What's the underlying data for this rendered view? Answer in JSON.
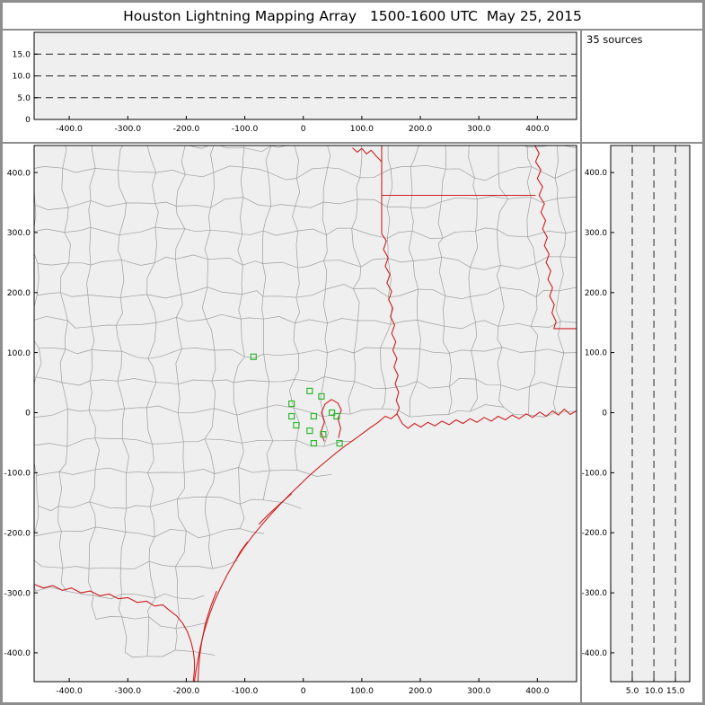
{
  "title": "Houston Lightning Mapping Array   1500-1600 UTC  May 25, 2015",
  "sources_label": "35 sources",
  "colors": {
    "frame": "#8e8e8e",
    "panel_bg": "#ffffff",
    "plot_bg": "#efefef",
    "axis": "#000000",
    "dashed": "#222222",
    "county": "#9e9e9e",
    "state": "#cc2020",
    "station": "#2db82d"
  },
  "chart_data": [
    {
      "id": "altitude_vs_ew",
      "name": "Altitude vs east-west distance panel (km), empty of sources",
      "type": "scatter",
      "xlim": [
        -460,
        467
      ],
      "ylim": [
        0,
        20
      ],
      "x_ticks": [
        {
          "v": -400,
          "label": "-400.0"
        },
        {
          "v": -300,
          "label": "-300.0"
        },
        {
          "v": -200,
          "label": "-200.0"
        },
        {
          "v": -100,
          "label": "-100.0"
        },
        {
          "v": 0,
          "label": "0"
        },
        {
          "v": 100,
          "label": "100.0"
        },
        {
          "v": 200,
          "label": "200.0"
        },
        {
          "v": 300,
          "label": "300.0"
        },
        {
          "v": 400,
          "label": "400.0"
        }
      ],
      "y_ticks": [
        {
          "v": 15,
          "label": "15.0"
        },
        {
          "v": 10,
          "label": "10.0"
        },
        {
          "v": 5,
          "label": "5.0"
        },
        {
          "v": 0,
          "label": "0"
        }
      ],
      "dashed_y": [
        5,
        10,
        15
      ],
      "points": []
    },
    {
      "id": "plan_view_map",
      "name": "Plan-view map, km east/north of network center; green squares are LMA stations; red = state borders, rivers and Gulf coastline; gray = county lines",
      "type": "scatter",
      "xlim": [
        -460,
        467
      ],
      "ylim": [
        -448,
        445
      ],
      "x_ticks": [
        {
          "v": -400,
          "label": "-400.0"
        },
        {
          "v": -300,
          "label": "-300.0"
        },
        {
          "v": -200,
          "label": "-200.0"
        },
        {
          "v": -100,
          "label": "-100.0"
        },
        {
          "v": 0,
          "label": "0"
        },
        {
          "v": 100,
          "label": "100.0"
        },
        {
          "v": 200,
          "label": "200.0"
        },
        {
          "v": 300,
          "label": "300.0"
        },
        {
          "v": 400,
          "label": "400.0"
        }
      ],
      "y_ticks": [
        {
          "v": 400,
          "label": "400.0"
        },
        {
          "v": 300,
          "label": "300.0"
        },
        {
          "v": 200,
          "label": "200.0"
        },
        {
          "v": 100,
          "label": "100.0"
        },
        {
          "v": 0,
          "label": "0"
        },
        {
          "v": -100,
          "label": "-100.0"
        },
        {
          "v": -200,
          "label": "-200.0"
        },
        {
          "v": -300,
          "label": "-300.0"
        },
        {
          "v": -400,
          "label": "-400.0"
        }
      ],
      "stations": [
        [
          -85,
          93
        ],
        [
          11,
          36
        ],
        [
          31,
          27
        ],
        [
          -20,
          15
        ],
        [
          -20,
          -6
        ],
        [
          -12,
          -21
        ],
        [
          18,
          -6
        ],
        [
          49,
          0
        ],
        [
          57,
          -6
        ],
        [
          11,
          -30
        ],
        [
          34,
          -36
        ],
        [
          18,
          -51
        ],
        [
          62,
          -51
        ]
      ],
      "land_boundary": [
        [
          -460,
          -285
        ],
        [
          -350,
          -352
        ],
        [
          -250,
          -420
        ],
        [
          -196,
          -448
        ],
        [
          -160,
          -330
        ],
        [
          -130,
          -260
        ],
        [
          -90,
          -200
        ],
        [
          -40,
          -150
        ],
        [
          10,
          -103
        ],
        [
          60,
          -57
        ],
        [
          110,
          -25
        ],
        [
          155,
          -4
        ],
        [
          250,
          -14
        ],
        [
          350,
          -10
        ],
        [
          467,
          -5
        ]
      ],
      "state_lines": [
        [
          [
            134,
            446
          ],
          [
            134,
            418
          ]
        ],
        [
          [
            84,
            441
          ],
          [
            92,
            434
          ],
          [
            100,
            440
          ],
          [
            108,
            431
          ],
          [
            116,
            437
          ],
          [
            124,
            428
          ],
          [
            134,
            418
          ]
        ],
        [
          [
            134,
            418
          ],
          [
            134,
            298
          ]
        ],
        [
          [
            134,
            362
          ],
          [
            397,
            362
          ]
        ],
        [
          [
            134,
            298
          ],
          [
            142,
            286
          ],
          [
            137,
            272
          ],
          [
            145,
            258
          ],
          [
            140,
            244
          ],
          [
            148,
            230
          ],
          [
            143,
            216
          ],
          [
            151,
            202
          ],
          [
            146,
            188
          ],
          [
            153,
            174
          ],
          [
            149,
            160
          ],
          [
            156,
            146
          ],
          [
            151,
            132
          ],
          [
            158,
            118
          ],
          [
            153,
            104
          ],
          [
            160,
            90
          ],
          [
            155,
            76
          ],
          [
            162,
            62
          ],
          [
            157,
            48
          ],
          [
            163,
            34
          ],
          [
            159,
            20
          ],
          [
            164,
            8
          ],
          [
            160,
            -2
          ]
        ],
        [
          [
            395,
            446
          ],
          [
            403,
            432
          ],
          [
            397,
            418
          ],
          [
            406,
            404
          ],
          [
            400,
            390
          ],
          [
            409,
            376
          ],
          [
            403,
            362
          ],
          [
            412,
            348
          ],
          [
            406,
            334
          ],
          [
            414,
            320
          ],
          [
            409,
            306
          ],
          [
            417,
            292
          ],
          [
            412,
            278
          ],
          [
            420,
            264
          ],
          [
            415,
            250
          ],
          [
            423,
            236
          ],
          [
            418,
            222
          ],
          [
            426,
            208
          ],
          [
            421,
            194
          ],
          [
            429,
            180
          ],
          [
            425,
            166
          ],
          [
            432,
            152
          ],
          [
            428,
            140
          ]
        ],
        [
          [
            428,
            140
          ],
          [
            467,
            140
          ]
        ]
      ],
      "coast_lines": [
        [
          [
            467,
            3
          ],
          [
            456,
            -3
          ],
          [
            446,
            6
          ],
          [
            436,
            -4
          ],
          [
            426,
            3
          ],
          [
            415,
            -6
          ],
          [
            404,
            1
          ],
          [
            392,
            -8
          ],
          [
            381,
            -2
          ],
          [
            369,
            -10
          ],
          [
            357,
            -4
          ],
          [
            345,
            -12
          ],
          [
            333,
            -6
          ],
          [
            321,
            -14
          ],
          [
            309,
            -8
          ],
          [
            297,
            -16
          ],
          [
            285,
            -10
          ],
          [
            273,
            -18
          ],
          [
            261,
            -12
          ],
          [
            249,
            -20
          ],
          [
            237,
            -14
          ],
          [
            225,
            -22
          ],
          [
            213,
            -16
          ],
          [
            201,
            -24
          ],
          [
            190,
            -18
          ],
          [
            179,
            -26
          ],
          [
            169,
            -18
          ],
          [
            160,
            -2
          ]
        ],
        [
          [
            160,
            -2
          ],
          [
            150,
            -10
          ],
          [
            140,
            -6
          ],
          [
            128,
            -16
          ],
          [
            116,
            -24
          ],
          [
            102,
            -34
          ],
          [
            88,
            -44
          ],
          [
            72,
            -55
          ],
          [
            56,
            -67
          ],
          [
            40,
            -80
          ],
          [
            24,
            -93
          ],
          [
            8,
            -107
          ],
          [
            -8,
            -122
          ],
          [
            -24,
            -137
          ],
          [
            -40,
            -153
          ],
          [
            -56,
            -170
          ],
          [
            -72,
            -188
          ],
          [
            -88,
            -207
          ],
          [
            -103,
            -227
          ],
          [
            -117,
            -248
          ],
          [
            -130,
            -270
          ],
          [
            -142,
            -293
          ],
          [
            -153,
            -317
          ],
          [
            -162,
            -341
          ],
          [
            -170,
            -366
          ],
          [
            -176,
            -391
          ],
          [
            -181,
            -416
          ],
          [
            -184,
            -434
          ],
          [
            -186,
            -448
          ]
        ],
        [
          [
            -148,
            -297
          ],
          [
            -158,
            -322
          ],
          [
            -167,
            -350
          ],
          [
            -173,
            -378
          ],
          [
            -177,
            -404
          ],
          [
            -179,
            -428
          ],
          [
            -180,
            -448
          ]
        ],
        [
          [
            -460,
            -286
          ],
          [
            -444,
            -292
          ],
          [
            -428,
            -288
          ],
          [
            -412,
            -296
          ],
          [
            -396,
            -292
          ],
          [
            -380,
            -300
          ],
          [
            -364,
            -297
          ],
          [
            -348,
            -305
          ],
          [
            -332,
            -302
          ],
          [
            -316,
            -310
          ],
          [
            -300,
            -308
          ],
          [
            -284,
            -316
          ],
          [
            -268,
            -314
          ],
          [
            -254,
            -322
          ],
          [
            -240,
            -320
          ],
          [
            -228,
            -330
          ],
          [
            -216,
            -339
          ],
          [
            -206,
            -351
          ],
          [
            -198,
            -365
          ],
          [
            -192,
            -381
          ],
          [
            -188,
            -397
          ],
          [
            -186,
            -413
          ],
          [
            -186,
            -429
          ],
          [
            -188,
            -448
          ]
        ],
        [
          [
            36,
            -48
          ],
          [
            30,
            -32
          ],
          [
            36,
            -16
          ],
          [
            31,
            0
          ],
          [
            37,
            14
          ]
        ],
        [
          [
            60,
            -42
          ],
          [
            64,
            -26
          ],
          [
            59,
            -10
          ],
          [
            65,
            4
          ],
          [
            59,
            16
          ],
          [
            48,
            22
          ],
          [
            37,
            14
          ]
        ],
        [
          [
            -20,
            -135
          ],
          [
            -40,
            -152
          ],
          [
            -60,
            -170
          ],
          [
            -76,
            -186
          ]
        ],
        [
          [
            -95,
            -215
          ],
          [
            -108,
            -232
          ],
          [
            -118,
            -250
          ]
        ]
      ]
    },
    {
      "id": "altitude_vs_ns",
      "name": "Altitude vs north-south distance panel (km), empty of sources",
      "type": "scatter",
      "xlim": [
        0,
        18.3
      ],
      "ylim": [
        -448,
        445
      ],
      "x_ticks": [
        {
          "v": 5,
          "label": "5.0"
        },
        {
          "v": 10,
          "label": "10.0"
        },
        {
          "v": 15,
          "label": "15.0"
        }
      ],
      "y_ticks": [
        {
          "v": 400,
          "label": "400.0"
        },
        {
          "v": 300,
          "label": "300.0"
        },
        {
          "v": 200,
          "label": "200.0"
        },
        {
          "v": 100,
          "label": "100.0"
        },
        {
          "v": 0,
          "label": "0"
        },
        {
          "v": -100,
          "label": "-100.0"
        },
        {
          "v": -200,
          "label": "-200.0"
        },
        {
          "v": -300,
          "label": "-300.0"
        },
        {
          "v": -400,
          "label": "-400.0"
        }
      ],
      "dashed_x": [
        5,
        10,
        15
      ],
      "points": []
    }
  ]
}
